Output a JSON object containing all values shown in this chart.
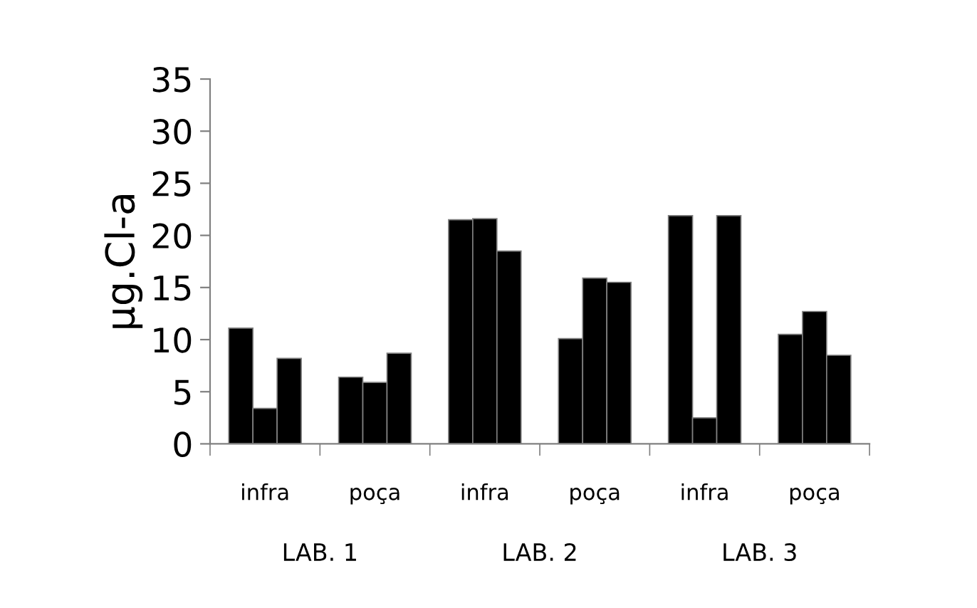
{
  "chart_data": {
    "type": "bar",
    "ylabel": "µg.Cl-a",
    "categories": [
      "infra",
      "poça",
      "infra",
      "poça",
      "infra",
      "poça"
    ],
    "series": [
      {
        "color": "#000000",
        "values": [
          11.1,
          6.4,
          21.5,
          10.1,
          21.9,
          10.5
        ]
      },
      {
        "color": "#000000",
        "values": [
          3.4,
          5.9,
          21.6,
          15.9,
          2.5,
          12.7
        ]
      },
      {
        "color": "#000000",
        "values": [
          8.2,
          8.7,
          18.5,
          15.5,
          21.9,
          8.5
        ]
      }
    ],
    "annotations": [
      "LAB. 1",
      "LAB. 2",
      "LAB. 3"
    ],
    "ylim": [
      0,
      35
    ],
    "yticks": [
      0,
      5,
      10,
      15,
      20,
      25,
      30,
      35
    ],
    "grid": false,
    "legend": false
  }
}
